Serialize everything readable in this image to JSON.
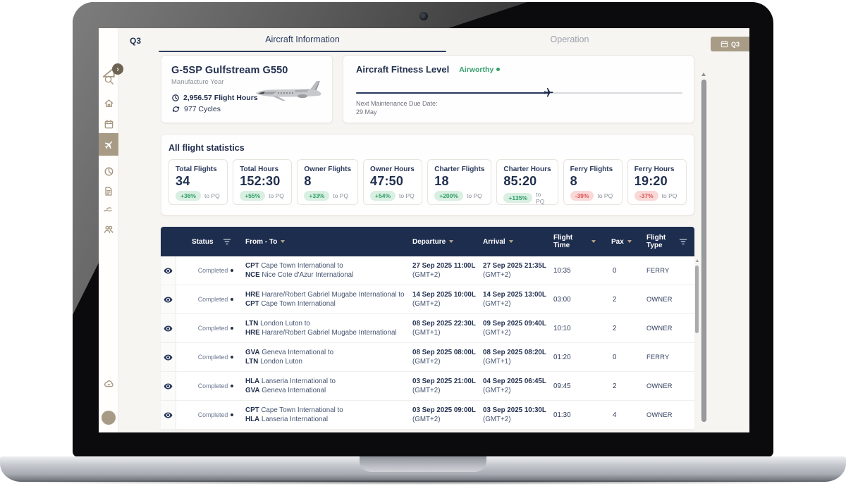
{
  "topbar": {
    "quarter_label": "Q3",
    "tabs": [
      "Aircraft Information",
      "Operation"
    ],
    "quarter_badge": "Q3"
  },
  "sidebar": {
    "items": [
      "logo",
      "expand",
      "search",
      "home",
      "calendar",
      "flights",
      "statistics",
      "documents",
      "services",
      "crew",
      "support",
      "profile"
    ]
  },
  "aircraft_card": {
    "title": "G-5SP Gulfstream G550",
    "subtitle": "Manufacture Year",
    "flight_hours": "2,956.57 Flight Hours",
    "cycles": "977 Cycles"
  },
  "fitness": {
    "title": "Aircraft Fitness Level",
    "status": "Airworthy",
    "progress_percent": 59,
    "next_maintenance_label": "Next Maintenance Due Date:",
    "next_maintenance_date": "29 May"
  },
  "stats": {
    "title": "All flight statistics",
    "cards": [
      {
        "label": "Total Flights",
        "value": "34",
        "change": "+36%",
        "direction": "up",
        "suffix": "to PQ"
      },
      {
        "label": "Total Hours",
        "value": "152:30",
        "change": "+55%",
        "direction": "up",
        "suffix": "to PQ"
      },
      {
        "label": "Owner Flights",
        "value": "8",
        "change": "+33%",
        "direction": "up",
        "suffix": "to PQ"
      },
      {
        "label": "Owner Hours",
        "value": "47:50",
        "change": "+54%",
        "direction": "up",
        "suffix": "to PQ"
      },
      {
        "label": "Charter Flights",
        "value": "18",
        "change": "+200%",
        "direction": "up",
        "suffix": "to PQ"
      },
      {
        "label": "Charter Hours",
        "value": "85:20",
        "change": "+135%",
        "direction": "up",
        "suffix": "to PQ"
      },
      {
        "label": "Ferry Flights",
        "value": "8",
        "change": "-39%",
        "direction": "down",
        "suffix": "to PQ"
      },
      {
        "label": "Ferry Hours",
        "value": "19:20",
        "change": "-37%",
        "direction": "down",
        "suffix": "to PQ"
      }
    ]
  },
  "table": {
    "columns": [
      {
        "label": "Status",
        "icon": "filter-icon"
      },
      {
        "label": "From - To",
        "icon": "sort-icon"
      },
      {
        "label": "Departure",
        "icon": "sort-icon"
      },
      {
        "label": "Arrival",
        "icon": "sort-icon"
      },
      {
        "label": "Flight Time",
        "icon": "sort-icon"
      },
      {
        "label": "Pax",
        "icon": "sort-icon"
      },
      {
        "label": "Flight Type",
        "icon": "filter-icon"
      }
    ],
    "rows": [
      {
        "status": "Completed",
        "from_code": "CPT",
        "from_rest": "Cape Town International to",
        "to_code": "NCE",
        "to_rest": "Nice Cote d'Azur International",
        "dep_date": "27 Sep 2025 11:00L",
        "dep_tz": "(GMT+2)",
        "arr_date": "27 Sep 2025 21:35L",
        "arr_tz": "(GMT+2)",
        "flight_time": "10:35",
        "pax": "0",
        "flight_type": "FERRY"
      },
      {
        "status": "Completed",
        "from_code": "HRE",
        "from_rest": "Harare/Robert Gabriel Mugabe International to",
        "to_code": "CPT",
        "to_rest": "Cape Town International",
        "dep_date": "14 Sep 2025 10:00L",
        "dep_tz": "(GMT+2)",
        "arr_date": "14 Sep 2025 13:00L",
        "arr_tz": "(GMT+2)",
        "flight_time": "03:00",
        "pax": "2",
        "flight_type": "OWNER"
      },
      {
        "status": "Completed",
        "from_code": "LTN",
        "from_rest": "London Luton to",
        "to_code": "HRE",
        "to_rest": "Harare/Robert Gabriel Mugabe International",
        "dep_date": "08 Sep 2025 22:30L",
        "dep_tz": "(GMT+1)",
        "arr_date": "09 Sep 2025 09:40L",
        "arr_tz": "(GMT+2)",
        "flight_time": "10:10",
        "pax": "2",
        "flight_type": "OWNER"
      },
      {
        "status": "Completed",
        "from_code": "GVA",
        "from_rest": "Geneva International to",
        "to_code": "LTN",
        "to_rest": "London Luton",
        "dep_date": "08 Sep 2025 08:00L",
        "dep_tz": "(GMT+2)",
        "arr_date": "08 Sep 2025 08:20L",
        "arr_tz": "(GMT+1)",
        "flight_time": "01:20",
        "pax": "0",
        "flight_type": "FERRY"
      },
      {
        "status": "Completed",
        "from_code": "HLA",
        "from_rest": "Lanseria International to",
        "to_code": "GVA",
        "to_rest": "Geneva International",
        "dep_date": "03 Sep 2025 21:00L",
        "dep_tz": "(GMT+2)",
        "arr_date": "04 Sep 2025 06:45L",
        "arr_tz": "(GMT+2)",
        "flight_time": "09:45",
        "pax": "2",
        "flight_type": "OWNER"
      },
      {
        "status": "Completed",
        "from_code": "CPT",
        "from_rest": "Cape Town International to",
        "to_code": "HLA",
        "to_rest": "Lanseria International",
        "dep_date": "03 Sep 2025 09:00L",
        "dep_tz": "(GMT+2)",
        "arr_date": "03 Sep 2025 10:30L",
        "arr_tz": "(GMT+2)",
        "flight_time": "01:30",
        "pax": "4",
        "flight_type": "OWNER"
      }
    ]
  },
  "colors": {
    "navy": "#1d2d4e",
    "accent_tan": "#a79b86",
    "green": "#2f9e68",
    "green_bg": "#d9efe2",
    "red": "#e05252",
    "red_bg": "#f9d9d8",
    "app_bg": "#f7f5f2"
  }
}
